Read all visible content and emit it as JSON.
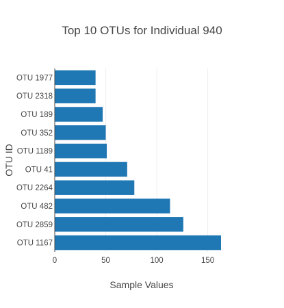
{
  "chart_data": {
    "type": "bar",
    "orientation": "horizontal",
    "title": "Top 10 OTUs for Individual 940",
    "xlabel": "Sample Values",
    "ylabel": "OTU ID",
    "categories": [
      "OTU 1977",
      "OTU 2318",
      "OTU 189",
      "OTU 352",
      "OTU 1189",
      "OTU 41",
      "OTU 2264",
      "OTU 482",
      "OTU 2859",
      "OTU 1167"
    ],
    "values": [
      40,
      40,
      47,
      50,
      51,
      71,
      78,
      113,
      126,
      163
    ],
    "xlim": [
      0,
      163
    ],
    "xticks": [
      0,
      50,
      100,
      150
    ],
    "grid": true,
    "legend": "none",
    "bar_color": "#1f77b4"
  }
}
